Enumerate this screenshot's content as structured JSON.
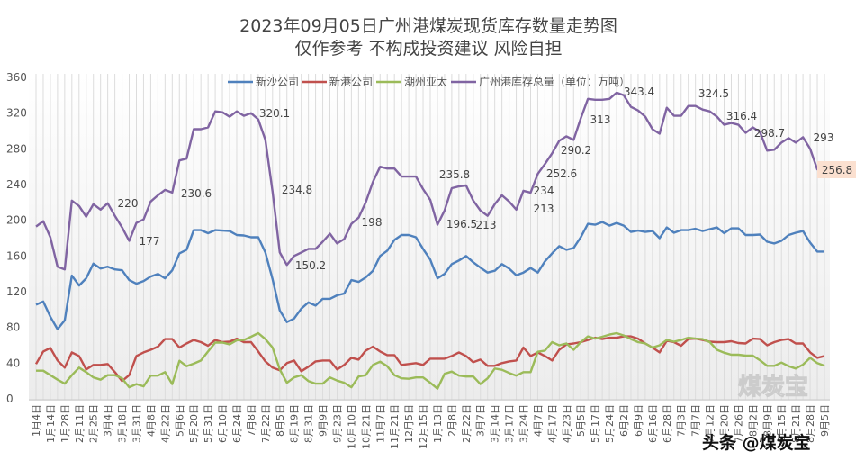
{
  "chart_data": {
    "type": "line",
    "title": "2023年09月05日广州港煤炭现货库存数量走势图",
    "subtitle": "仅作参考 不构成投资建议 风险自担",
    "xlabel": "",
    "ylabel": "",
    "ylim": [
      0,
      360
    ],
    "yticks": [
      "0",
      "40",
      "80",
      "120",
      "160",
      "200",
      "240",
      "280",
      "320",
      "360"
    ],
    "grid": "vertical",
    "legend_position": "top",
    "x_tick_every": 2,
    "x_tick_labels": [
      "1月4日",
      "1月14日",
      "1月28日",
      "2月11日",
      "2月25日",
      "3月4日",
      "3月18日",
      "3月31日",
      "4月8日",
      "4月22日",
      "5月6日",
      "5月20日",
      "5月31日",
      "6月10日",
      "6月24日",
      "7月8日",
      "7月22日",
      "8月5日",
      "8月19日",
      "8月31日",
      "9月9日",
      "9月23日",
      "10月10日",
      "10月21日",
      "11月7日",
      "11月21日",
      "12月5日",
      "12月15日",
      "1月13日",
      "2月8日",
      "2月22日",
      "3月7日",
      "3月14日",
      "3月17日",
      "3月24日",
      "4月7日",
      "4月17日",
      "4月23日",
      "5月5日",
      "5月17日",
      "5月24日",
      "6月2日",
      "6月9日",
      "6月16日",
      "6月28日",
      "7月3日",
      "7月7日",
      "7月12日",
      "7月20日",
      "7月26日",
      "8月2日",
      "8月9日",
      "8月15日",
      "8月21日",
      "8月28日",
      "9月5日"
    ],
    "series": [
      {
        "name": "新沙公司",
        "color": "#4f81bd",
        "values": [
          105.5,
          109,
          92,
          78,
          88,
          138,
          127,
          135,
          151.5,
          146,
          148,
          145,
          144,
          133,
          129,
          132,
          137,
          140,
          135,
          144,
          163,
          167,
          189,
          189,
          185.5,
          189,
          188.5,
          188,
          183.5,
          183,
          181,
          181,
          164,
          134,
          99,
          86,
          90,
          101,
          108,
          104.5,
          112,
          112,
          116,
          118,
          133,
          131,
          136,
          143.5,
          160,
          166,
          178,
          183.5,
          183.5,
          181,
          168,
          156,
          135,
          140,
          151,
          155,
          160,
          153,
          147,
          141.5,
          143.5,
          151,
          146,
          138.5,
          141.5,
          146.5,
          141.5,
          154,
          163,
          171,
          167,
          169,
          181,
          196,
          195,
          198,
          194,
          197,
          194,
          187,
          188.5,
          187,
          188,
          180,
          192,
          186,
          189,
          189,
          190.5,
          188,
          190,
          192,
          185.5,
          191,
          191,
          183.5,
          183.5,
          184,
          176,
          174,
          177,
          183.5,
          186,
          188,
          175,
          165,
          165
        ]
      },
      {
        "name": "新港公司",
        "color": "#c0504d",
        "values": [
          39,
          53,
          57,
          43,
          35,
          52,
          48,
          33,
          38,
          38,
          39,
          30,
          20,
          26.5,
          48,
          52,
          55,
          58.5,
          67,
          67,
          57.5,
          62,
          66,
          63.5,
          59.5,
          66,
          63.5,
          64,
          67.5,
          63.5,
          63.5,
          53,
          42,
          35,
          32,
          40,
          43,
          31,
          36,
          42,
          43,
          43,
          33,
          38,
          46,
          44,
          54,
          58.5,
          53,
          49,
          49,
          38,
          39,
          40,
          38,
          45,
          45,
          45,
          48,
          52,
          48,
          41,
          44,
          37,
          37,
          40,
          42,
          43,
          57.5,
          48,
          52,
          48,
          43,
          55,
          61,
          62,
          63.5,
          66,
          68.5,
          67,
          68.5,
          68.5,
          70,
          70,
          67.5,
          62,
          57.5,
          52,
          65,
          63.5,
          59.5,
          67,
          67.5,
          66,
          64,
          63.5,
          63.5,
          64.5,
          62.5,
          62,
          67.5,
          67,
          60,
          63.5,
          66,
          67,
          62,
          62,
          52,
          46,
          48
        ]
      },
      {
        "name": "潮州亚太",
        "color": "#9bbb59",
        "values": [
          31.6,
          31.6,
          26.5,
          21.5,
          17,
          26.5,
          35,
          30,
          24,
          21.5,
          26.5,
          26.5,
          23,
          13,
          16.5,
          14,
          26,
          26,
          30,
          16.5,
          42.7,
          36.6,
          39.4,
          43,
          53,
          63,
          63,
          61,
          65.6,
          66,
          69.6,
          73.6,
          67,
          57.5,
          33,
          18,
          24,
          26.5,
          20,
          17,
          17,
          24,
          20.5,
          18,
          13,
          25,
          26.5,
          38,
          41.6,
          36.6,
          26.5,
          23,
          22.5,
          24,
          24,
          18,
          11.4,
          28,
          30.6,
          26,
          25,
          25,
          16.5,
          23,
          34,
          32.6,
          29,
          26,
          30,
          30,
          52.7,
          54,
          63.5,
          60,
          62,
          55,
          63.5,
          70,
          67.5,
          69.6,
          72,
          73.6,
          71,
          67,
          63.5,
          62,
          57.5,
          60,
          66,
          64,
          66,
          68.5,
          67.5,
          67,
          63.5,
          55,
          51.7,
          49.4,
          49.4,
          48.4,
          48.4,
          43.3,
          37,
          37,
          40.6,
          36.6,
          34,
          38.3,
          46,
          40,
          37
        ]
      },
      {
        "name": "广州港库存总量（单位：万吨）",
        "color": "#8064a2",
        "values": [
          193,
          199,
          181,
          148,
          145,
          222,
          216,
          204,
          218,
          212,
          219,
          205,
          192,
          177,
          197,
          201,
          221,
          228,
          234,
          231,
          267,
          269,
          302,
          302,
          304,
          322,
          321,
          316,
          322,
          317,
          320,
          313,
          290,
          232,
          164,
          150,
          160,
          164,
          168,
          168,
          176,
          185,
          174,
          179,
          196,
          203,
          220,
          243,
          260,
          258,
          258,
          249,
          249,
          249,
          235,
          223,
          195,
          211,
          236,
          238,
          239,
          222,
          211,
          205,
          218,
          228,
          221,
          212,
          233,
          231,
          252,
          263,
          275,
          289,
          294,
          290,
          314,
          336,
          335,
          335,
          336,
          343,
          340,
          327,
          323,
          316,
          302,
          297,
          326,
          317,
          317,
          328,
          328,
          324,
          322,
          316,
          307,
          309,
          307,
          298,
          304,
          299,
          278,
          279,
          287,
          292,
          287,
          293,
          280,
          257,
          257
        ]
      }
    ],
    "annotations": [
      "220",
      "177",
      "230.6",
      "320.1",
      "234.8",
      "150.2",
      "198",
      "235.8",
      "196.5",
      "213",
      "213",
      "234",
      "252.6",
      "290.2",
      "313",
      "343.4",
      "324.5",
      "316.4",
      "298.7",
      "293",
      "256.8"
    ],
    "highlight_color": "#fbe0d0"
  },
  "watermark": {
    "source": "头条 @煤炭宝",
    "logo": "煤炭宝"
  }
}
